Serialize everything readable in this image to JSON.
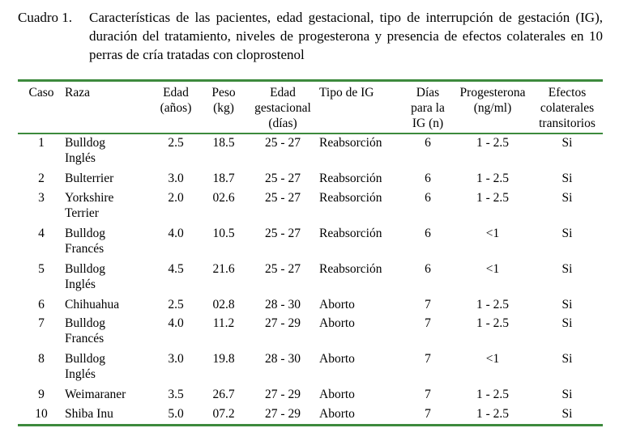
{
  "caption": {
    "label": "Cuadro 1.",
    "text": "Características de las pacientes, edad gestacional, tipo de interrupción de gestación (IG), duración del tratamiento, niveles de progesterona y presencia de efectos colaterales en 10 perras de cría tratadas con cloprostenol"
  },
  "table": {
    "headers": {
      "caso": "Caso",
      "raza": "Raza",
      "edad": [
        "Edad",
        "(años)"
      ],
      "peso": [
        "Peso",
        "(kg)"
      ],
      "edad_gest": [
        "Edad",
        "gestacional",
        "(días)"
      ],
      "tipo_ig": "Tipo de IG",
      "dias": [
        "Días",
        "para la",
        "IG (n)"
      ],
      "progesterona": [
        "Progesterona",
        "(ng/ml)"
      ],
      "efectos": [
        "Efectos",
        "colaterales",
        "transitorios"
      ]
    },
    "rows": [
      {
        "caso": "1",
        "raza": [
          "Bulldog",
          "Inglés"
        ],
        "edad": "2.5",
        "peso": "18.5",
        "edad_gest": "25 - 27",
        "tipo": "Reabsorción",
        "dias": "6",
        "prog": "1 - 2.5",
        "efectos": "Si"
      },
      {
        "caso": "2",
        "raza": [
          "Bulterrier"
        ],
        "edad": "3.0",
        "peso": "18.7",
        "edad_gest": "25 - 27",
        "tipo": "Reabsorción",
        "dias": "6",
        "prog": "1 - 2.5",
        "efectos": "Si"
      },
      {
        "caso": "3",
        "raza": [
          "Yorkshire",
          "Terrier"
        ],
        "edad": "2.0",
        "peso": "02.6",
        "edad_gest": "25 - 27",
        "tipo": "Reabsorción",
        "dias": "6",
        "prog": "1 - 2.5",
        "efectos": "Si"
      },
      {
        "caso": "4",
        "raza": [
          "Bulldog",
          "Francés"
        ],
        "edad": "4.0",
        "peso": "10.5",
        "edad_gest": "25 - 27",
        "tipo": "Reabsorción",
        "dias": "6",
        "prog": "<1",
        "efectos": "Si"
      },
      {
        "caso": "5",
        "raza": [
          "Bulldog",
          "Inglés"
        ],
        "edad": "4.5",
        "peso": "21.6",
        "edad_gest": "25 - 27",
        "tipo": "Reabsorción",
        "dias": "6",
        "prog": "<1",
        "efectos": "Si"
      },
      {
        "caso": "6",
        "raza": [
          "Chihuahua"
        ],
        "edad": "2.5",
        "peso": "02.8",
        "edad_gest": "28 - 30",
        "tipo": "Aborto",
        "dias": "7",
        "prog": "1 - 2.5",
        "efectos": "Si"
      },
      {
        "caso": "7",
        "raza": [
          "Bulldog",
          "Francés"
        ],
        "edad": "4.0",
        "peso": "11.2",
        "edad_gest": "27 - 29",
        "tipo": "Aborto",
        "dias": "7",
        "prog": "1 - 2.5",
        "efectos": "Si"
      },
      {
        "caso": "8",
        "raza": [
          "Bulldog",
          "Inglés"
        ],
        "edad": "3.0",
        "peso": "19.8",
        "edad_gest": "28 - 30",
        "tipo": "Aborto",
        "dias": "7",
        "prog": "<1",
        "efectos": "Si"
      },
      {
        "caso": "9",
        "raza": [
          "Weimaraner"
        ],
        "edad": "3.5",
        "peso": "26.7",
        "edad_gest": "27 - 29",
        "tipo": "Aborto",
        "dias": "7",
        "prog": "1 - 2.5",
        "efectos": "Si"
      },
      {
        "caso": "10",
        "raza": [
          "Shiba Inu"
        ],
        "edad": "5.0",
        "peso": "07.2",
        "edad_gest": "27 - 29",
        "tipo": "Aborto",
        "dias": "7",
        "prog": "1 - 2.5",
        "efectos": "Si"
      }
    ]
  },
  "colors": {
    "rule": "#3d8a3d"
  }
}
